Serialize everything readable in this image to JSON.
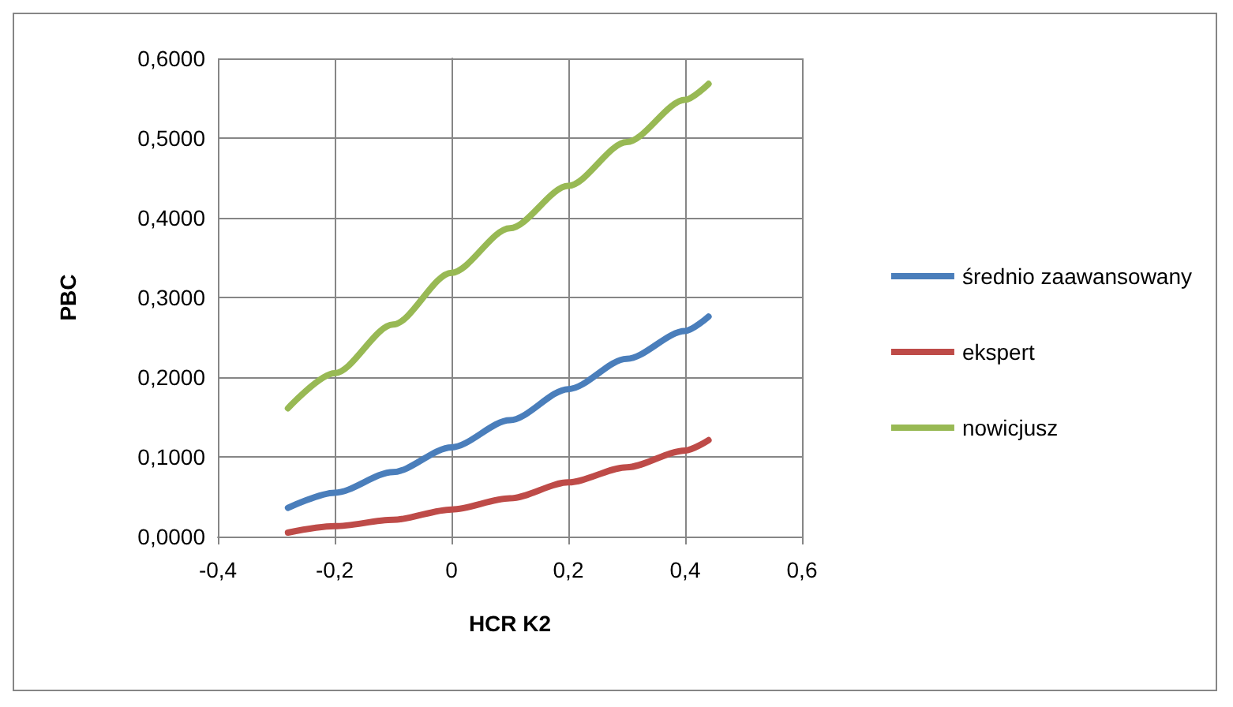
{
  "chart_data": {
    "type": "line",
    "xlabel": "HCR K2",
    "ylabel": "PBC",
    "xlim": [
      -0.4,
      0.6
    ],
    "xticks": [
      {
        "value": -0.4,
        "label": "-0,4"
      },
      {
        "value": -0.2,
        "label": "-0,2"
      },
      {
        "value": 0,
        "label": "0"
      },
      {
        "value": 0.2,
        "label": "0,2"
      },
      {
        "value": 0.4,
        "label": "0,4"
      },
      {
        "value": 0.6,
        "label": "0,6"
      }
    ],
    "ylim": [
      0,
      0.6
    ],
    "yticks": [
      {
        "value": 0,
        "label": "0,0000"
      },
      {
        "value": 0.1,
        "label": "0,1000"
      },
      {
        "value": 0.2,
        "label": "0,2000"
      },
      {
        "value": 0.3,
        "label": "0,3000"
      },
      {
        "value": 0.4,
        "label": "0,4000"
      },
      {
        "value": 0.5,
        "label": "0,5000"
      },
      {
        "value": 0.6,
        "label": "0,6000"
      }
    ],
    "x": [
      -0.28,
      -0.2,
      -0.1,
      0,
      0.1,
      0.2,
      0.3,
      0.4,
      0.44
    ],
    "series": [
      {
        "name": "średnio zaawansowany",
        "color": "#4a7ebb",
        "values": [
          0.036,
          0.055,
          0.081,
          0.112,
          0.146,
          0.185,
          0.223,
          0.258,
          0.276
        ]
      },
      {
        "name": "ekspert",
        "color": "#be4b48",
        "values": [
          0.005,
          0.013,
          0.021,
          0.034,
          0.048,
          0.068,
          0.087,
          0.108,
          0.121
        ]
      },
      {
        "name": "nowicjusz",
        "color": "#98b954",
        "values": [
          0.161,
          0.205,
          0.266,
          0.331,
          0.387,
          0.44,
          0.495,
          0.548,
          0.568
        ]
      }
    ],
    "grid": true,
    "legend": "right",
    "marker": "none",
    "line_style": "solid"
  }
}
